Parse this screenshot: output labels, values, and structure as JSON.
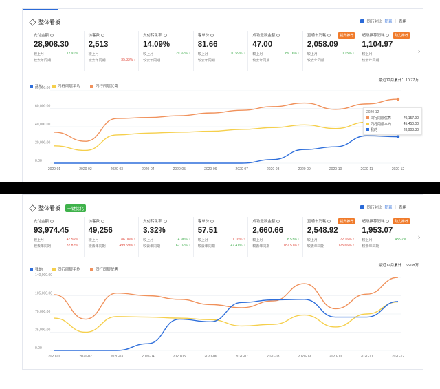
{
  "colors": {
    "mine": "#2f6fdb",
    "avg": "#f5cf4b",
    "excellent": "#f0915b",
    "up": "#e0473a",
    "down": "#3aaa48",
    "accent": "#2a6ad8"
  },
  "panel1": {
    "title": "整体看板",
    "options": {
      "compare": "同行对比",
      "chart": "图表",
      "table": "表格"
    },
    "metrics": [
      {
        "name": "支付金额",
        "value": "28,908.30",
        "r1_label": "较上月",
        "r1_val": "12.91%",
        "r1_dir": "down",
        "r2_label": "较去年同期",
        "r2_val": "",
        "tag": ""
      },
      {
        "name": "访客数",
        "value": "2,513",
        "r1_label": "较上月",
        "r1_val": "",
        "r1_dir": "",
        "r2_label": "较去年同期",
        "r2_val": "35.33%",
        "r2_dir": "up",
        "tag": ""
      },
      {
        "name": "支付转化率",
        "value": "14.09%",
        "r1_label": "较上月",
        "r1_val": "29.92%",
        "r1_dir": "down",
        "r2_label": "较去年同期",
        "r2_val": "",
        "tag": ""
      },
      {
        "name": "客单价",
        "value": "81.66",
        "r1_label": "较上月",
        "r1_val": "10.59%",
        "r1_dir": "down",
        "r2_label": "较去年同期",
        "r2_val": "",
        "tag": ""
      },
      {
        "name": "成功退款金额",
        "value": "47.00",
        "r1_label": "较上月",
        "r1_val": "89.16%",
        "r1_dir": "down",
        "r2_label": "较去年同期",
        "r2_val": "",
        "tag": ""
      },
      {
        "name": "直通车消耗",
        "value": "2,058.09",
        "r1_label": "较上月",
        "r1_val": "0.15%",
        "r1_dir": "down",
        "r2_label": "较去年同期",
        "r2_val": "",
        "tag": "提升推荐"
      },
      {
        "name": "超级推荐消耗",
        "value": "1,104.97",
        "r1_label": "较上月",
        "r1_val": "",
        "r1_dir": "",
        "r2_label": "较去年同期",
        "r2_val": "",
        "tag": "助力推荐"
      }
    ],
    "total": "最近12月累计：10.77万",
    "legend": [
      "我的",
      "同行同层平均",
      "同行同层优秀"
    ],
    "tooltip": {
      "title": "2020-12",
      "rows": [
        {
          "name": "同行同层优秀",
          "value": "70,157.90"
        },
        {
          "name": "同行同层平均",
          "value": "45,450.00"
        },
        {
          "name": "我的",
          "value": "28,908.30"
        }
      ]
    }
  },
  "panel2": {
    "title": "整体看板",
    "badge": "一键优化",
    "options": {
      "compare": "同行对比",
      "chart": "图表",
      "table": "表格"
    },
    "metrics": [
      {
        "name": "支付金额",
        "value": "93,974.45",
        "r1_label": "较上月",
        "r1_val": "47.56%",
        "r1_dir": "up",
        "r2_label": "较去年同期",
        "r2_val": "82.82%",
        "r2_dir": "up",
        "tag": ""
      },
      {
        "name": "访客数",
        "value": "49,256",
        "r1_label": "较上月",
        "r1_val": "86.08%",
        "r1_dir": "up",
        "r2_label": "较去年同期",
        "r2_val": "499.59%",
        "r2_dir": "up",
        "tag": ""
      },
      {
        "name": "支付转化率",
        "value": "3.32%",
        "r1_label": "较上月",
        "r1_val": "14.96%",
        "r1_dir": "down",
        "r2_label": "较去年同期",
        "r2_val": "62.02%",
        "r2_dir": "down",
        "tag": ""
      },
      {
        "name": "客单价",
        "value": "57.51",
        "r1_label": "较上月",
        "r1_val": "11.16%",
        "r1_dir": "up",
        "r2_label": "较去年同期",
        "r2_val": "47.41%",
        "r2_dir": "down",
        "tag": ""
      },
      {
        "name": "成功退款金额",
        "value": "2,660.66",
        "r1_label": "较上月",
        "r1_val": "8.53%",
        "r1_dir": "down",
        "r2_label": "较去年同期",
        "r2_val": "182.51%",
        "r2_dir": "up",
        "tag": ""
      },
      {
        "name": "直通车消耗",
        "value": "2,548.92",
        "r1_label": "较上月",
        "r1_val": "72.16%",
        "r1_dir": "up",
        "r2_label": "较去年同期",
        "r2_val": "125.66%",
        "r2_dir": "up",
        "tag": "提升推荐"
      },
      {
        "name": "超级推荐消耗",
        "value": "1,953.07",
        "r1_label": "较上月",
        "r1_val": "43.92%",
        "r1_dir": "down",
        "r2_label": "较去年同期",
        "r2_val": "",
        "tag": "助力推荐"
      }
    ],
    "total": "最近12月累计：65.08万",
    "legend": [
      "我的",
      "同行同层平均",
      "同行同层优秀"
    ]
  },
  "chart_data": [
    {
      "type": "line",
      "title": "整体看板 — 支付金额 (panel 1)",
      "categories": [
        "2020-01",
        "2020-02",
        "2020-03",
        "2020-04",
        "2020-05",
        "2020-06",
        "2020-07",
        "2020-08",
        "2020-09",
        "2020-10",
        "2020-11",
        "2020-12"
      ],
      "yticks": [
        "0.00",
        "20,000.00",
        "40,000.00",
        "60,000.00",
        "80,000.00"
      ],
      "ylim": [
        0,
        80000
      ],
      "series": [
        {
          "name": "我的",
          "values": [
            0,
            0,
            0,
            0,
            0,
            0,
            0,
            4000,
            15000,
            18000,
            30000,
            28908.3
          ]
        },
        {
          "name": "同行同层平均",
          "values": [
            19000,
            14000,
            31000,
            33000,
            34000,
            35000,
            37000,
            39000,
            42000,
            38000,
            45000,
            45450
          ]
        },
        {
          "name": "同行同层优秀",
          "values": [
            34000,
            24000,
            49000,
            50000,
            52000,
            55000,
            58000,
            62000,
            66000,
            59000,
            65000,
            70157.9
          ]
        }
      ]
    },
    {
      "type": "line",
      "title": "整体看板 — 支付金额 (panel 2)",
      "categories": [
        "2020-01",
        "2020-02",
        "2020-03",
        "2020-04",
        "2020-05",
        "2020-06",
        "2020-07",
        "2020-08",
        "2020-09",
        "2020-10",
        "2020-11",
        "2020-12"
      ],
      "yticks": [
        "0.00",
        "35,000.00",
        "70,000.00",
        "105,000.00",
        "140,000.00"
      ],
      "ylim": [
        0,
        140000
      ],
      "series": [
        {
          "name": "我的",
          "values": [
            0,
            0,
            0,
            13000,
            60000,
            55000,
            92000,
            97000,
            98000,
            64000,
            64000,
            93974.45
          ]
        },
        {
          "name": "同行同层平均",
          "values": [
            62000,
            35000,
            65000,
            64000,
            62000,
            59000,
            47000,
            50000,
            68000,
            45000,
            70000,
            93000
          ]
        },
        {
          "name": "同行同层优秀",
          "values": [
            107000,
            60000,
            110000,
            105000,
            98000,
            88000,
            82000,
            95000,
            128000,
            80000,
            108000,
            140000
          ]
        }
      ]
    }
  ]
}
